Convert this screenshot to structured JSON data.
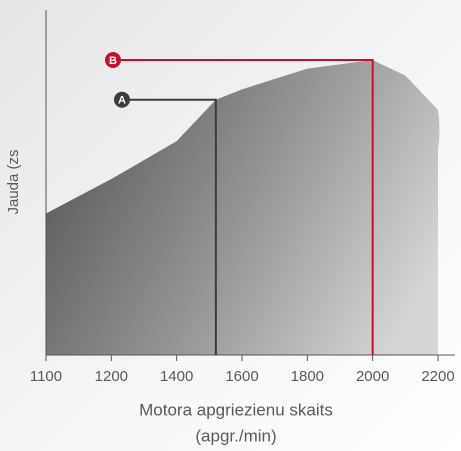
{
  "chart_data": {
    "type": "area",
    "ylabel": "Jauda (zs",
    "xlabel": [
      "Motora apgriezienu skaits",
      "(apgr./min)"
    ],
    "x": [
      1100,
      1200,
      1400,
      1520,
      1600,
      1800,
      2000,
      2100,
      2200
    ],
    "series": [
      {
        "values": [
          41,
          51,
          62,
          74,
          77,
          83,
          85.5,
          81,
          71
        ]
      }
    ],
    "xlim": [
      1100,
      2200
    ],
    "xticks": [
      1100,
      1200,
      1400,
      1600,
      1800,
      2000,
      2200
    ],
    "ylim": [
      0,
      100
    ],
    "annotations": [
      {
        "label": "A",
        "x": 1520,
        "y": 74,
        "color": "#3c3c3c"
      },
      {
        "label": "B",
        "x": 2000,
        "y": 85.5,
        "color": "#c8102e"
      }
    ]
  }
}
